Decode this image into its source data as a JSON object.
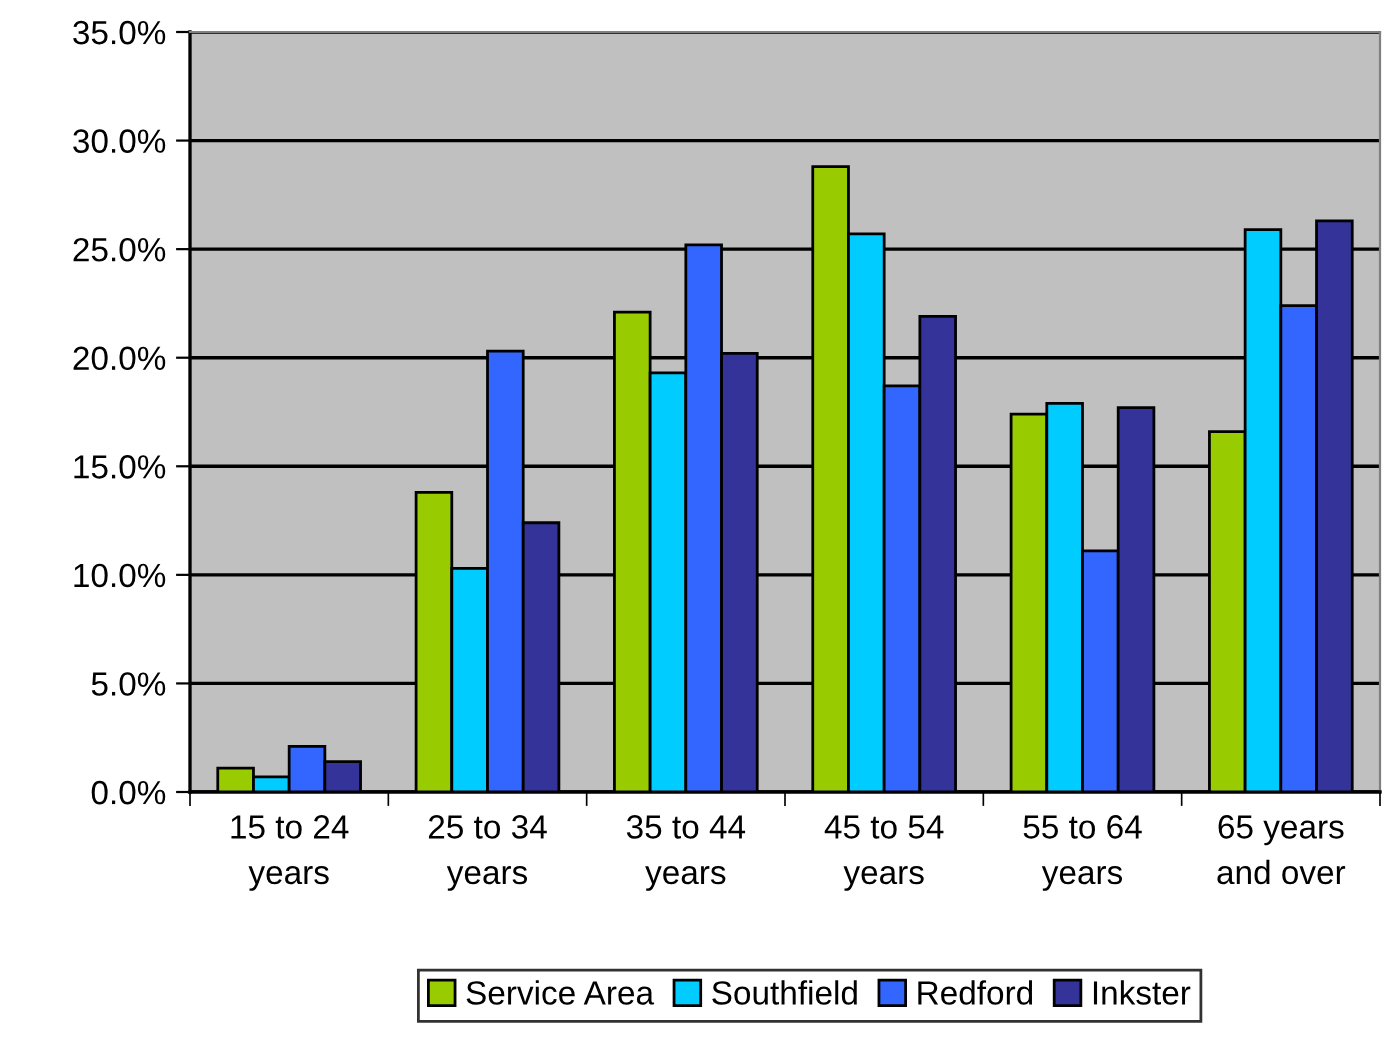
{
  "chart_data": {
    "type": "bar",
    "categories": [
      "15 to 24\nyears",
      "25 to 34\nyears",
      "35 to 44\nyears",
      "45 to 54\nyears",
      "55 to 64\nyears",
      "65 years\nand over"
    ],
    "series": [
      {
        "name": "Service Area",
        "color": "#99cc00",
        "values": [
          1.1,
          13.8,
          22.1,
          28.8,
          17.4,
          16.6
        ]
      },
      {
        "name": "Southfield",
        "color": "#00ccff",
        "values": [
          0.7,
          10.3,
          19.3,
          25.7,
          17.9,
          25.9
        ]
      },
      {
        "name": "Redford",
        "color": "#3366ff",
        "values": [
          2.1,
          20.3,
          25.2,
          18.7,
          11.1,
          22.4
        ]
      },
      {
        "name": "Inkster",
        "color": "#333399",
        "values": [
          1.4,
          12.4,
          20.2,
          21.9,
          17.7,
          26.3
        ]
      }
    ],
    "ylim": [
      0,
      35
    ],
    "yticks": [
      {
        "value": 0,
        "label": "0.0%"
      },
      {
        "value": 5,
        "label": "5.0%"
      },
      {
        "value": 10,
        "label": "10.0%"
      },
      {
        "value": 15,
        "label": "15.0%"
      },
      {
        "value": 20,
        "label": "20.0%"
      },
      {
        "value": 25,
        "label": "25.0%"
      },
      {
        "value": 30,
        "label": "30.0%"
      },
      {
        "value": 35,
        "label": "35.0%"
      }
    ],
    "grid": "y",
    "legend": "bottom"
  }
}
